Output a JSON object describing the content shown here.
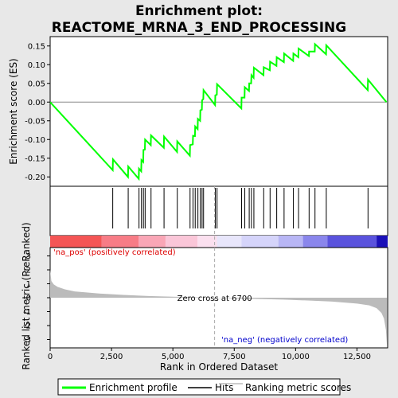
{
  "chart_data": {
    "type": "line",
    "title_line1": "Enrichment plot:",
    "title_line2": "REACTOME_MRNA_3_END_PROCESSING",
    "es_panel": {
      "ylabel": "Enrichment score (ES)",
      "ylim": [
        -0.225,
        0.175
      ],
      "yticks": [
        -0.2,
        -0.15,
        -0.1,
        -0.05,
        0.0,
        0.05,
        0.1,
        0.15
      ],
      "ytick_labels": [
        "-0.20",
        "-0.15",
        "-0.10",
        "-0.05",
        "0.00",
        "0.05",
        "0.10",
        "0.15"
      ],
      "series": [
        {
          "name": "Enrichment profile",
          "color": "#00ff00",
          "x": [
            0,
            2548,
            2560,
            3170,
            3180,
            3610,
            3620,
            3710,
            3720,
            3790,
            3800,
            3860,
            3870,
            4100,
            4110,
            4630,
            4640,
            5170,
            5180,
            5690,
            5700,
            5810,
            5820,
            5900,
            5910,
            6010,
            6020,
            6110,
            6120,
            6180,
            6190,
            6240,
            6250,
            6720,
            6730,
            6790,
            6800,
            7790,
            7800,
            7920,
            7930,
            8100,
            8110,
            8190,
            8200,
            8290,
            8300,
            8690,
            8700,
            8950,
            8960,
            9220,
            9230,
            9520,
            9530,
            9900,
            9910,
            10110,
            10120,
            10540,
            10550,
            10780,
            10790,
            11240,
            11250,
            12940,
            12950,
            13700
          ],
          "y": [
            0.0,
            -0.182,
            -0.153,
            -0.2,
            -0.172,
            -0.205,
            -0.178,
            -0.185,
            -0.155,
            -0.16,
            -0.128,
            -0.127,
            -0.1,
            -0.115,
            -0.089,
            -0.122,
            -0.092,
            -0.133,
            -0.105,
            -0.143,
            -0.115,
            -0.113,
            -0.09,
            -0.091,
            -0.065,
            -0.072,
            -0.045,
            -0.05,
            -0.022,
            -0.02,
            0.005,
            0.008,
            0.032,
            -0.008,
            0.018,
            0.02,
            0.048,
            -0.017,
            0.012,
            0.012,
            0.04,
            0.03,
            0.05,
            0.05,
            0.072,
            0.065,
            0.092,
            0.072,
            0.093,
            0.085,
            0.108,
            0.097,
            0.12,
            0.107,
            0.13,
            0.11,
            0.13,
            0.12,
            0.143,
            0.123,
            0.135,
            0.135,
            0.155,
            0.128,
            0.152,
            0.032,
            0.06,
            0.0
          ]
        }
      ]
    },
    "hits": [
      2550,
      3180,
      3620,
      3720,
      3800,
      3870,
      4110,
      4640,
      5180,
      5700,
      5820,
      5910,
      6020,
      6120,
      6190,
      6250,
      6730,
      6800,
      7800,
      7930,
      8110,
      8200,
      8300,
      8700,
      8960,
      9230,
      9530,
      9910,
      10120,
      10550,
      10790,
      11250,
      12950
    ],
    "rank_panel": {
      "ylabel": "Ranked list metric (PreRanked)",
      "xlabel": "Rank in Ordered Dataset",
      "ylim": [
        -3.6,
        3.6
      ],
      "yticks": [
        -3,
        -2,
        -1,
        0,
        1,
        2,
        3
      ],
      "ytick_labels": [
        "-3",
        "-2",
        "-1",
        "0",
        "1",
        "2",
        "3"
      ],
      "xlim": [
        0,
        13750
      ],
      "xticks": [
        0,
        2500,
        5000,
        7500,
        10000,
        12500
      ],
      "xtick_labels": [
        "0",
        "2,500",
        "5,000",
        "7,500",
        "10,000",
        "12,500"
      ],
      "metric_x": [
        0,
        50,
        150,
        300,
        600,
        1000,
        2000,
        3000,
        4000,
        5000,
        6000,
        6700,
        7500,
        8500,
        9500,
        10500,
        11500,
        12500,
        13000,
        13300,
        13500,
        13600,
        13680,
        13720
      ],
      "metric_y": [
        2.0,
        1.2,
        0.95,
        0.78,
        0.6,
        0.45,
        0.3,
        0.2,
        0.12,
        0.07,
        0.03,
        0.0,
        -0.04,
        -0.09,
        -0.14,
        -0.2,
        -0.28,
        -0.42,
        -0.55,
        -0.75,
        -1.1,
        -1.5,
        -2.3,
        -3.4
      ],
      "zero_cross_x": 6700,
      "zero_cross_label": "Zero cross at 6700",
      "pos_label": "'na_pos' (positively correlated)",
      "neg_label": "'na_neg' (negatively correlated)",
      "pos_color": "#dd0000",
      "neg_color": "#0000cc"
    },
    "color_bar": [
      {
        "x0": 0,
        "x1": 2100,
        "color": "#f45555"
      },
      {
        "x0": 2100,
        "x1": 3600,
        "color": "#f77c86"
      },
      {
        "x0": 3600,
        "x1": 4700,
        "color": "#f9a6b6"
      },
      {
        "x0": 4700,
        "x1": 6000,
        "color": "#fac6d8"
      },
      {
        "x0": 6000,
        "x1": 6800,
        "color": "#fbe0ef"
      },
      {
        "x0": 6800,
        "x1": 7800,
        "color": "#e8e6fb"
      },
      {
        "x0": 7800,
        "x1": 9300,
        "color": "#d5d4fa"
      },
      {
        "x0": 9300,
        "x1": 10300,
        "color": "#b8b6f5"
      },
      {
        "x0": 10300,
        "x1": 11300,
        "color": "#8a86ec"
      },
      {
        "x0": 11300,
        "x1": 13300,
        "color": "#5a53dd"
      },
      {
        "x0": 13300,
        "x1": 13750,
        "color": "#1a10b8"
      }
    ],
    "legend": [
      {
        "label": "Enrichment profile",
        "color": "#00ff00"
      },
      {
        "label": "Hits",
        "color": "#000000"
      },
      {
        "label": "Ranking metric scores",
        "color": "#bbbbbb"
      }
    ]
  }
}
